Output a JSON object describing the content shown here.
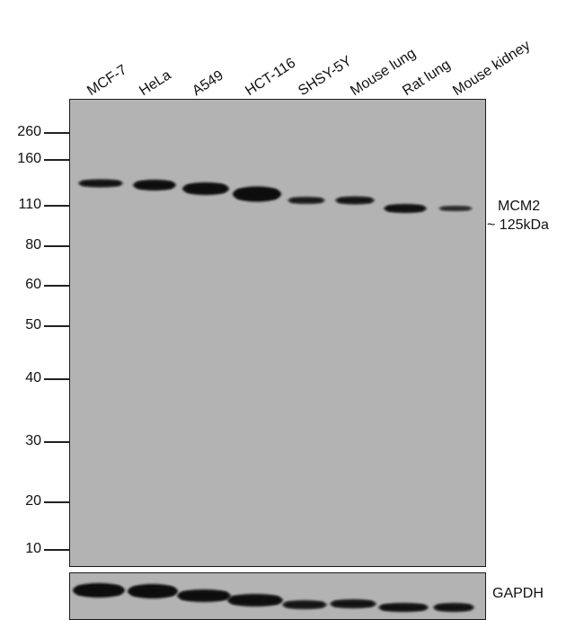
{
  "lanes": [
    "MCF-7",
    "HeLa",
    "A549",
    "HCT-116",
    "SHSY-5Y",
    "Mouse lung",
    "Rat lung",
    "Mouse kidney"
  ],
  "markers": [
    "260",
    "160",
    "110",
    "80",
    "60",
    "50",
    "40",
    "30",
    "20",
    "10"
  ],
  "target": {
    "name": "MCM2",
    "size": "~ 125kDa"
  },
  "loading_control": "GAPDH",
  "band_intensity": {
    "mcm2": [
      0.75,
      0.9,
      0.95,
      1.0,
      0.6,
      0.7,
      0.8,
      0.45
    ],
    "gapdh": [
      1.0,
      1.0,
      0.9,
      0.9,
      0.7,
      0.75,
      0.8,
      0.75
    ]
  },
  "colors": {
    "membrane": "#b3b3b3",
    "band": "#0d0d0d",
    "frame": "#1a1a1a"
  }
}
